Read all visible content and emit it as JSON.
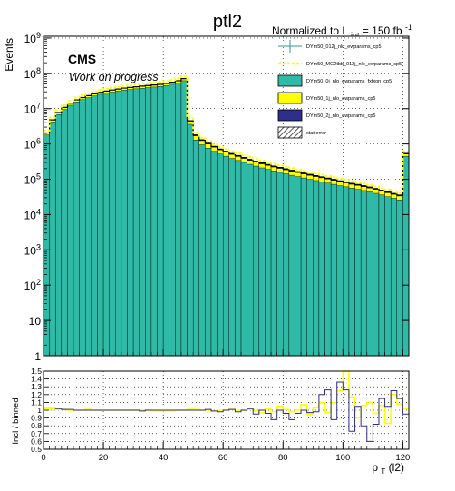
{
  "chart_data": [
    {
      "type": "histogram",
      "title": "ptl2",
      "lumi_label": "Normalized to L",
      "lumi_sub": "int",
      "lumi_value": " = 150 fb",
      "lumi_sup": "-1",
      "cms_label": "CMS",
      "status_label": "Work on progress",
      "ylabel": "Events",
      "xlabel": "p",
      "xlabel_sub": "T",
      "xlabel_suffix": "(l2)",
      "y_scale": "log",
      "ylim": [
        1,
        1000000000
      ],
      "xlim": [
        0,
        122
      ],
      "grid": true,
      "y_ticks": [
        {
          "value": 1,
          "base": "1",
          "exp": ""
        },
        {
          "value": 10,
          "base": "10",
          "exp": ""
        },
        {
          "value": 100,
          "base": "10",
          "exp": "2"
        },
        {
          "value": 1000,
          "base": "10",
          "exp": "3"
        },
        {
          "value": 10000,
          "base": "10",
          "exp": "4"
        },
        {
          "value": 100000,
          "base": "10",
          "exp": "5"
        },
        {
          "value": 1000000,
          "base": "10",
          "exp": "6"
        },
        {
          "value": 10000000,
          "base": "10",
          "exp": "7"
        },
        {
          "value": 100000000,
          "base": "10",
          "exp": "8"
        },
        {
          "value": 1000000000,
          "base": "10",
          "exp": "9"
        }
      ],
      "bin_width": 2,
      "bin_low_edges": [
        0,
        2,
        4,
        6,
        8,
        10,
        12,
        14,
        16,
        18,
        20,
        22,
        24,
        26,
        28,
        30,
        32,
        34,
        36,
        38,
        40,
        42,
        44,
        46,
        48,
        50,
        52,
        54,
        56,
        58,
        60,
        62,
        64,
        66,
        68,
        70,
        72,
        74,
        76,
        78,
        80,
        82,
        84,
        86,
        88,
        90,
        92,
        94,
        96,
        98,
        100,
        102,
        104,
        106,
        108,
        110,
        112,
        114,
        116,
        118,
        120
      ],
      "legend_placement": "top-right",
      "legend": [
        {
          "label": "DYm50_012j_nlo_ewparams_cp5",
          "style": "errorbar",
          "color": "#2a9d8f"
        },
        {
          "label": "DYm50_MG2tbb_012j_nlo_ewparams_cp5",
          "style": "dashed",
          "color": "#ffff00"
        },
        {
          "label": "DYm50_0j_nlo_ewparams_fxfxon_cp5",
          "style": "fill",
          "color": "#2ebaa6"
        },
        {
          "label": "DYm50_1j_nlo_ewparams_cp5",
          "style": "fill",
          "color": "#ffff00"
        },
        {
          "label": "DYm50_2j_nlo_ewparams_cp5",
          "style": "fill",
          "color": "#2e2e8c"
        },
        {
          "label": "stat error",
          "style": "hatch",
          "color": "#444444"
        }
      ],
      "series": [
        {
          "name": "DYm50_0j_nlo_ewparams_fxfxon_cp5",
          "color": "#2ebaa6",
          "values": [
            1800000,
            4200000,
            6800000,
            9500000,
            12500000,
            15500000,
            18000000,
            20500000,
            23000000,
            25500000,
            27500000,
            29500000,
            31500000,
            33500000,
            35000000,
            36500000,
            38000000,
            39500000,
            41000000,
            42500000,
            45000000,
            49000000,
            54000000,
            62000000,
            3600000,
            1300000,
            950000,
            760000,
            620000,
            520000,
            450000,
            390000,
            340000,
            300000,
            265000,
            235000,
            210000,
            190000,
            172000,
            157000,
            143000,
            130000,
            119000,
            109000,
            100000,
            92000,
            85000,
            78000,
            72000,
            66000,
            61000,
            56000,
            52000,
            48000,
            44000,
            40000,
            36000,
            32000,
            29000,
            26000,
            450000
          ]
        },
        {
          "name": "DYm50_1j_nlo_ewparams_cp5",
          "color": "#ffff00",
          "values": [
            240000,
            550000,
            900000,
            1250000,
            1650000,
            2050000,
            2400000,
            2700000,
            3050000,
            3350000,
            3650000,
            3900000,
            4150000,
            4400000,
            4650000,
            4850000,
            5050000,
            5250000,
            5450000,
            5650000,
            6000000,
            6500000,
            7200000,
            8200000,
            800000,
            400000,
            290000,
            230000,
            185000,
            155000,
            135000,
            115000,
            100000,
            89000,
            78000,
            69000,
            62000,
            56000,
            50000,
            46000,
            42000,
            38000,
            35000,
            32000,
            29000,
            27000,
            25000,
            23000,
            21000,
            19000,
            17500,
            16000,
            14800,
            13600,
            12500,
            11400,
            10300,
            9300,
            8400,
            7600,
            70000
          ]
        },
        {
          "name": "DYm50_2j_nlo_ewparams_cp5",
          "color": "#2e2e8c",
          "values": [
            20000,
            46000,
            76000,
            106000,
            140000,
            174000,
            204000,
            229000,
            259000,
            284000,
            310000,
            331000,
            352000,
            373000,
            394000,
            411000,
            428000,
            445000,
            462000,
            479000,
            510000,
            552000,
            612000,
            697000,
            150000,
            95000,
            70000,
            56000,
            46000,
            39000,
            34000,
            29000,
            26000,
            23000,
            20000,
            18000,
            16000,
            14500,
            13000,
            12000,
            11000,
            10000,
            9200,
            8400,
            7700,
            7100,
            6500,
            6000,
            5500,
            5000,
            4600,
            4200,
            3900,
            3600,
            3300,
            3000,
            2700,
            2450,
            2200,
            2000,
            18000
          ]
        }
      ]
    },
    {
      "type": "ratio",
      "ylabel": "Incl / binned",
      "xlim": [
        0,
        122
      ],
      "ylim": [
        0.5,
        1.5
      ],
      "x_ticks": [
        0,
        20,
        40,
        60,
        80,
        100,
        120
      ],
      "y_ticks": [
        0.5,
        0.6,
        0.7,
        0.8,
        0.9,
        1,
        1.1,
        1.2,
        1.3,
        1.4,
        1.5
      ],
      "grid": true,
      "series": [
        {
          "name": "DYm50_012j_nlo_ewparams_cp5",
          "color": "#ffff00",
          "values": [
            1.02,
            1.02,
            1.01,
            1.01,
            1.0,
            1.0,
            1.0,
            1.01,
            1.0,
            1.0,
            1.0,
            1.0,
            1.0,
            1.0,
            1.0,
            1.0,
            1.0,
            1.0,
            0.99,
            0.99,
            0.99,
            0.99,
            1.0,
            1.0,
            1.01,
            1.01,
            1.0,
            1.0,
            0.99,
            1.0,
            1.0,
            1.01,
            1.0,
            1.0,
            1.01,
            0.99,
            0.97,
            1.02,
            0.98,
            1.05,
            1.01,
            0.98,
            1.0,
            1.07,
            0.95,
            1.04,
            1.1,
            0.97,
            1.1,
            1.25,
            1.5,
            1.17,
            0.9,
            1.06,
            1.1,
            0.96,
            1.06,
            0.83,
            1.2,
            1.08,
            1.02
          ]
        },
        {
          "name": "DYm50_MG2tbb_012j_nlo_ewparams_cp5",
          "color": "#2e2e8c",
          "values": [
            1.03,
            1.03,
            1.02,
            1.01,
            1.01,
            1.0,
            1.0,
            1.0,
            1.0,
            1.0,
            1.0,
            1.0,
            1.0,
            1.0,
            1.0,
            1.0,
            0.99,
            1.0,
            1.0,
            1.0,
            1.0,
            1.0,
            1.0,
            1.0,
            1.0,
            1.0,
            1.0,
            1.01,
            0.99,
            0.98,
            1.0,
            1.01,
            0.98,
            1.0,
            1.02,
            0.95,
            1.0,
            0.96,
            0.88,
            1.0,
            0.96,
            0.88,
            0.96,
            1.0,
            0.97,
            0.98,
            1.2,
            1.26,
            0.88,
            1.36,
            1.26,
            0.73,
            1.05,
            0.8,
            0.6,
            0.82,
            1.15,
            1.05,
            1.25,
            1.15,
            0.95
          ]
        }
      ]
    }
  ]
}
